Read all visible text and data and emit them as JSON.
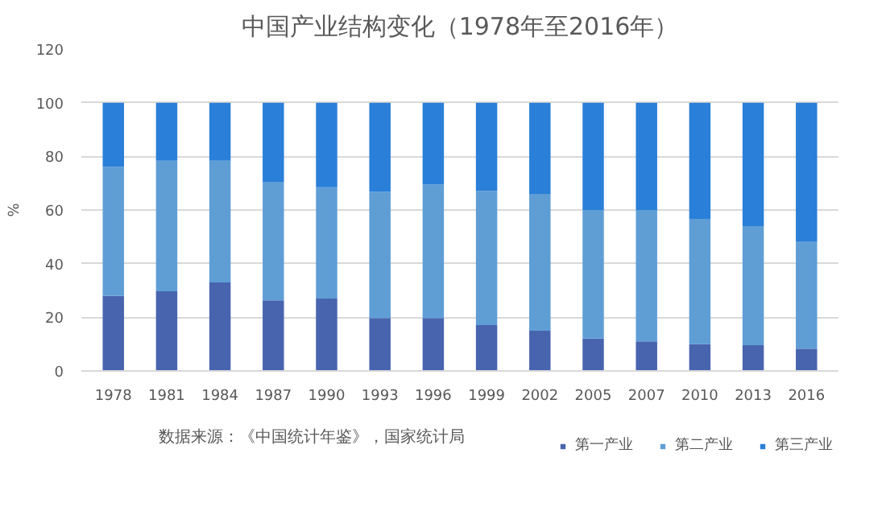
{
  "chart_data": {
    "type": "bar",
    "stacked": true,
    "title": "中国产业结构变化（1978年至2016年）",
    "ylabel": "%",
    "categories": [
      "1978",
      "1981",
      "1984",
      "1987",
      "1990",
      "1993",
      "1996",
      "1999",
      "2002",
      "2005",
      "2007",
      "2010",
      "2013",
      "2016"
    ],
    "series": [
      {
        "name": "第一产业",
        "color": "#4864ae",
        "values": [
          28.0,
          29.7,
          33.0,
          26.3,
          27.0,
          19.7,
          19.7,
          17.1,
          15.0,
          12.1,
          11.0,
          10.0,
          9.6,
          8.3
        ]
      },
      {
        "name": "第二产业",
        "color": "#5f9ed5",
        "values": [
          48.1,
          48.7,
          45.4,
          44.2,
          41.5,
          47.1,
          49.8,
          50.0,
          51.0,
          47.9,
          49.0,
          46.7,
          44.4,
          40.0
        ]
      },
      {
        "name": "第三产业",
        "color": "#2a7fd8",
        "values": [
          23.9,
          21.6,
          21.6,
          29.5,
          31.5,
          33.2,
          30.5,
          32.9,
          34.0,
          40.0,
          40.0,
          43.3,
          46.0,
          51.7
        ]
      }
    ],
    "ylim": [
      0,
      120
    ],
    "yticks": [
      0,
      20,
      40,
      60,
      80,
      100,
      120
    ],
    "grid": "y",
    "legend": "bottom right",
    "annotations": [
      "数据来源：《中国统计年鉴》，国家统计局"
    ]
  }
}
